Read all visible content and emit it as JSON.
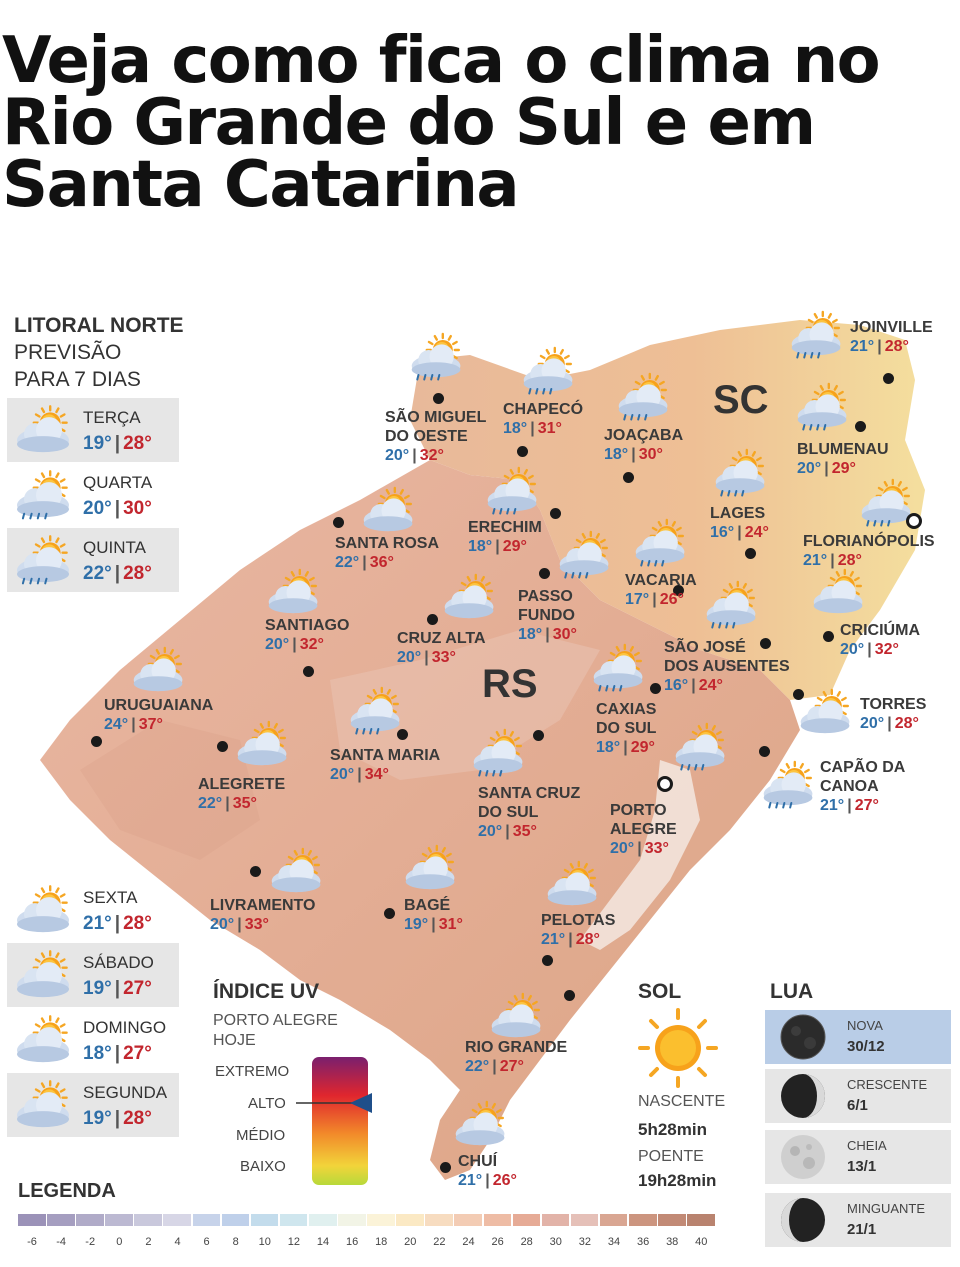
{
  "headline": [
    "Veja como fica o clima no",
    "Rio Grande do Sul e em",
    "Santa Catarina"
  ],
  "panel": {
    "title_lines": [
      "LITORAL NORTE",
      "PREVISÃO",
      "PARA 7 DIAS"
    ]
  },
  "forecast_days": [
    {
      "day": "TERÇA",
      "min": "19°",
      "max": "28°",
      "icon": "partly-cloudy-icon"
    },
    {
      "day": "QUARTA",
      "min": "20°",
      "max": "30°",
      "icon": "sun-rain-icon"
    },
    {
      "day": "QUINTA",
      "min": "22°",
      "max": "28°",
      "icon": "sun-rain-icon"
    },
    {
      "day": "SEXTA",
      "min": "21°",
      "max": "28°",
      "icon": "partly-cloudy-icon"
    },
    {
      "day": "SÁBADO",
      "min": "19°",
      "max": "27°",
      "icon": "partly-cloudy-icon"
    },
    {
      "day": "DOMINGO",
      "min": "18°",
      "max": "27°",
      "icon": "partly-cloudy-icon"
    },
    {
      "day": "SEGUNDA",
      "min": "19°",
      "max": "28°",
      "icon": "partly-cloudy-icon"
    }
  ],
  "regions": {
    "sc": "SC",
    "rs": "RS"
  },
  "cities": [
    {
      "name": [
        "JOINVILLE"
      ],
      "min": "21°",
      "max": "28°",
      "icon": "sun-rain-icon"
    },
    {
      "name": [
        "BLUMENAU"
      ],
      "min": "20°",
      "max": "29°",
      "icon": "sun-rain-icon"
    },
    {
      "name": [
        "FLORIANÓPOLIS"
      ],
      "min": "21°",
      "max": "28°",
      "icon": "sun-rain-icon"
    },
    {
      "name": [
        "CRICIÚMA"
      ],
      "min": "20°",
      "max": "32°",
      "icon": "partly-cloudy-icon"
    },
    {
      "name": [
        "TORRES"
      ],
      "min": "20°",
      "max": "28°",
      "icon": "partly-cloudy-icon"
    },
    {
      "name": [
        "CAPÃO DA",
        "CANOA"
      ],
      "min": "21°",
      "max": "27°",
      "icon": "sun-rain-icon"
    },
    {
      "name": [
        "SÃO MIGUEL",
        "DO OESTE"
      ],
      "min": "20°",
      "max": "32°",
      "icon": "sun-rain-icon"
    },
    {
      "name": [
        "CHAPECÓ"
      ],
      "min": "18°",
      "max": "31°",
      "icon": "sun-rain-icon"
    },
    {
      "name": [
        "JOAÇABA"
      ],
      "min": "18°",
      "max": "30°",
      "icon": "sun-rain-icon"
    },
    {
      "name": [
        "LAGES"
      ],
      "min": "16°",
      "max": "24°",
      "icon": "sun-rain-icon"
    },
    {
      "name": [
        "ERECHIM"
      ],
      "min": "18°",
      "max": "29°",
      "icon": "sun-rain-icon"
    },
    {
      "name": [
        "SANTA ROSA"
      ],
      "min": "22°",
      "max": "36°",
      "icon": "partly-cloudy-icon"
    },
    {
      "name": [
        "VACARIA"
      ],
      "min": "17°",
      "max": "26°",
      "icon": "sun-rain-icon"
    },
    {
      "name": [
        "PASSO",
        "FUNDO"
      ],
      "min": "18°",
      "max": "30°",
      "icon": "sun-rain-icon"
    },
    {
      "name": [
        "SANTIAGO"
      ],
      "min": "20°",
      "max": "32°",
      "icon": "partly-cloudy-icon"
    },
    {
      "name": [
        "CRUZ ALTA"
      ],
      "min": "20°",
      "max": "33°",
      "icon": "partly-cloudy-icon"
    },
    {
      "name": [
        "SÃO JOSÉ",
        "DOS AUSENTES"
      ],
      "min": "16°",
      "max": "24°",
      "icon": "sun-rain-icon"
    },
    {
      "name": [
        "URUGUAIANA"
      ],
      "min": "24°",
      "max": "37°",
      "icon": "partly-cloudy-icon"
    },
    {
      "name": [
        "CAXIAS",
        "DO SUL"
      ],
      "min": "18°",
      "max": "29°",
      "icon": "sun-rain-icon"
    },
    {
      "name": [
        "SANTA MARIA"
      ],
      "min": "20°",
      "max": "34°",
      "icon": "sun-rain-icon"
    },
    {
      "name": [
        "ALEGRETE"
      ],
      "min": "22°",
      "max": "35°",
      "icon": "partly-cloudy-icon"
    },
    {
      "name": [
        "SANTA CRUZ",
        "DO SUL"
      ],
      "min": "20°",
      "max": "35°",
      "icon": "sun-rain-icon"
    },
    {
      "name": [
        "PORTO",
        "ALEGRE"
      ],
      "min": "20°",
      "max": "33°",
      "icon": "sun-rain-icon"
    },
    {
      "name": [
        "LIVRAMENTO"
      ],
      "min": "20°",
      "max": "33°",
      "icon": "partly-cloudy-icon"
    },
    {
      "name": [
        "BAGÉ"
      ],
      "min": "19°",
      "max": "31°",
      "icon": "partly-cloudy-icon"
    },
    {
      "name": [
        "PELOTAS"
      ],
      "min": "21°",
      "max": "28°",
      "icon": "partly-cloudy-icon"
    },
    {
      "name": [
        "RIO GRANDE"
      ],
      "min": "22°",
      "max": "27°",
      "icon": "partly-cloudy-icon"
    },
    {
      "name": [
        "CHUÍ"
      ],
      "min": "21°",
      "max": "26°",
      "icon": "partly-cloudy-icon"
    }
  ],
  "uv": {
    "title": "ÍNDICE UV",
    "subtitle": [
      "PORTO ALEGRE",
      "HOJE"
    ],
    "levels": [
      "EXTREMO",
      "ALTO",
      "MÉDIO",
      "BAIXO"
    ],
    "current": "ALTO"
  },
  "sun": {
    "title": "SOL",
    "rise_label": "NASCENTE",
    "rise": "5h28min",
    "set_label": "POENTE",
    "set": "19h28min"
  },
  "moon": {
    "title": "LUA",
    "phases": [
      {
        "name": "NOVA",
        "date": "30/12",
        "active": true,
        "icon": "new-moon-icon"
      },
      {
        "name": "CRESCENTE",
        "date": "6/1",
        "active": false,
        "icon": "crescent-moon-icon"
      },
      {
        "name": "CHEIA",
        "date": "13/1",
        "active": false,
        "icon": "full-moon-icon"
      },
      {
        "name": "MINGUANTE",
        "date": "21/1",
        "active": false,
        "icon": "waning-moon-icon"
      }
    ]
  },
  "legend": {
    "title": "LEGENDA",
    "ticks": [
      "-6",
      "-4",
      "-2",
      "0",
      "2",
      "4",
      "6",
      "8",
      "10",
      "12",
      "14",
      "16",
      "18",
      "20",
      "22",
      "24",
      "26",
      "28",
      "30",
      "32",
      "34",
      "36",
      "38",
      "40"
    ],
    "colors": [
      "#9b92b8",
      "#a59ec0",
      "#b0abc8",
      "#bcb9d2",
      "#c9c8dc",
      "#d7d6e6",
      "#c7d3ea",
      "#bfd0ea",
      "#c3dcec",
      "#cfe6ee",
      "#e0f0ef",
      "#f2f4e6",
      "#fbf3d8",
      "#fbe9c4",
      "#f7dcc0",
      "#f3ccb4",
      "#eebca5",
      "#e6ab96",
      "#e2b3a8",
      "#e5c0b8",
      "#d9a692",
      "#cc957f",
      "#c28a76",
      "#b9836f"
    ]
  }
}
